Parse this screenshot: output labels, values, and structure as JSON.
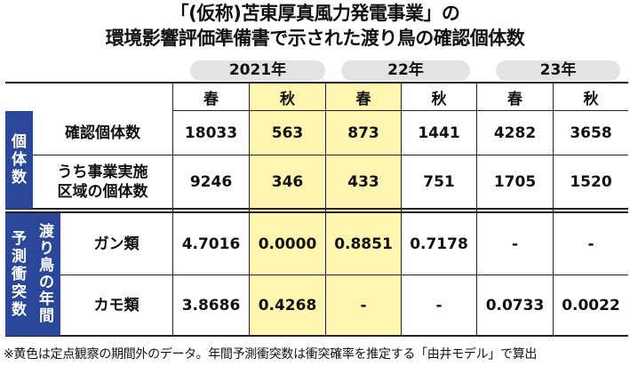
{
  "title": {
    "line1": "「(仮称)苫東厚真風力発電事業」の",
    "line2": "環境影響評価準備書で示された渡り鳥の確認個体数"
  },
  "years": [
    "2021年",
    "22年",
    "23年"
  ],
  "seasons": [
    "春",
    "秋",
    "春",
    "秋",
    "春",
    "秋"
  ],
  "highlight_color": "#fff4b0",
  "group_individuals": "個体数",
  "group_prediction": "予測衝突数",
  "sub_prediction": "渡り鳥の年間",
  "rows": [
    {
      "label": "確認個体数",
      "label2": "",
      "values": [
        "18033",
        "563",
        "873",
        "1441",
        "4282",
        "3658"
      ]
    },
    {
      "label": "うち事業実施",
      "label2": "区域の個体数",
      "values": [
        "9246",
        "346",
        "433",
        "751",
        "1705",
        "1520"
      ]
    },
    {
      "label": "ガン類",
      "label2": "",
      "values": [
        "4.7016",
        "0.0000",
        "0.8851",
        "0.7178",
        "-",
        "-"
      ]
    },
    {
      "label": "カモ類",
      "label2": "",
      "values": [
        "3.8686",
        "0.4268",
        "-",
        "-",
        "0.0733",
        "0.0022"
      ]
    }
  ],
  "footnote": "※黄色は定点観察の期間外のデータ。年間予測衝突数は衝突確率を推定する「由井モデル」で算出"
}
